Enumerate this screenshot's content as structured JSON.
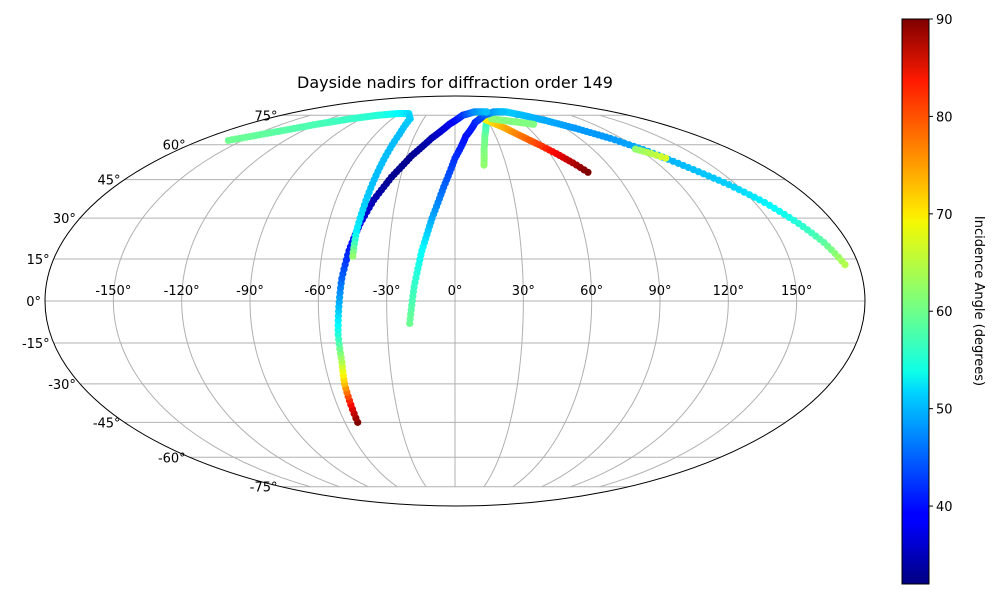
{
  "chart_data": {
    "type": "scatter",
    "projection": "mollweide",
    "title": "Dayside nadirs for diffraction order 149",
    "x_tick_labels": [
      "-150°",
      "-120°",
      "-90°",
      "-60°",
      "-30°",
      "0°",
      "30°",
      "60°",
      "90°",
      "120°",
      "150°"
    ],
    "y_tick_labels": [
      "-75°",
      "-60°",
      "-45°",
      "-30°",
      "-15°",
      "0°",
      "15°",
      "30°",
      "45°",
      "60°",
      "75°"
    ],
    "grid": true,
    "colorbar": {
      "label": "Incidence Angle (degrees)",
      "colormap": "jet",
      "range": [
        32,
        90
      ],
      "tick_labels": [
        "40",
        "50",
        "60",
        "70",
        "80",
        "90"
      ]
    },
    "series": [
      {
        "points": [
          {
            "lon": 17,
            "lat": 51,
            "inc": 62
          },
          {
            "lon": 19,
            "lat": 58,
            "inc": 61
          },
          {
            "lon": 22,
            "lat": 64,
            "inc": 60
          },
          {
            "lon": 26,
            "lat": 69,
            "inc": 58
          },
          {
            "lon": 31,
            "lat": 73,
            "inc": 56
          },
          {
            "lon": 38,
            "lat": 76,
            "inc": 54
          },
          {
            "lon": 47,
            "lat": 77,
            "inc": 52
          },
          {
            "lon": 58,
            "lat": 77,
            "inc": 51
          },
          {
            "lon": 70,
            "lat": 75,
            "inc": 50
          },
          {
            "lon": 84,
            "lat": 72,
            "inc": 49
          },
          {
            "lon": 98,
            "lat": 68,
            "inc": 48
          },
          {
            "lon": 112,
            "lat": 63,
            "inc": 48
          },
          {
            "lon": 124,
            "lat": 57,
            "inc": 49
          },
          {
            "lon": 135,
            "lat": 50,
            "inc": 50
          },
          {
            "lon": 146,
            "lat": 43,
            "inc": 51
          },
          {
            "lon": 155,
            "lat": 36,
            "inc": 53
          },
          {
            "lon": 163,
            "lat": 28,
            "inc": 56
          },
          {
            "lon": 169,
            "lat": 21,
            "inc": 59
          },
          {
            "lon": 174,
            "lat": 13,
            "inc": 64
          }
        ]
      },
      {
        "points": [
          {
            "lon": 25,
            "lat": 74,
            "inc": 66
          },
          {
            "lon": 33,
            "lat": 71,
            "inc": 70
          },
          {
            "lon": 41,
            "lat": 68,
            "inc": 73
          },
          {
            "lon": 49,
            "lat": 64,
            "inc": 76
          },
          {
            "lon": 57,
            "lat": 60,
            "inc": 79
          },
          {
            "lon": 64,
            "lat": 56,
            "inc": 83
          },
          {
            "lon": 70,
            "lat": 52,
            "inc": 87
          },
          {
            "lon": 75,
            "lat": 48,
            "inc": 90
          }
        ]
      },
      {
        "points": [
          {
            "lon": 35,
            "lat": 73,
            "inc": 62
          },
          {
            "lon": 46,
            "lat": 72,
            "inc": 61
          },
          {
            "lon": 58,
            "lat": 71,
            "inc": 61
          },
          {
            "lon": 68,
            "lat": 70,
            "inc": 61
          }
        ]
      },
      {
        "points": [
          {
            "lon": 118,
            "lat": 58,
            "inc": 62
          },
          {
            "lon": 124,
            "lat": 56,
            "inc": 64
          },
          {
            "lon": 129,
            "lat": 54,
            "inc": 66
          }
        ]
      },
      {
        "points": [
          {
            "lon": -20,
            "lat": -8,
            "inc": 60
          },
          {
            "lon": -18,
            "lat": 5,
            "inc": 57
          },
          {
            "lon": -15,
            "lat": 18,
            "inc": 54
          },
          {
            "lon": -11,
            "lat": 30,
            "inc": 49
          },
          {
            "lon": -6,
            "lat": 42,
            "inc": 45
          },
          {
            "lon": 0,
            "lat": 54,
            "inc": 42
          },
          {
            "lon": 8,
            "lat": 64,
            "inc": 40
          },
          {
            "lon": 18,
            "lat": 71,
            "inc": 41
          },
          {
            "lon": 30,
            "lat": 75,
            "inc": 44
          },
          {
            "lon": 44,
            "lat": 77,
            "inc": 48
          },
          {
            "lon": 55,
            "lat": 77,
            "inc": 50
          }
        ]
      },
      {
        "points": [
          {
            "lon": -53,
            "lat": -45,
            "inc": 90
          },
          {
            "lon": -53,
            "lat": -38,
            "inc": 83
          },
          {
            "lon": -53,
            "lat": -30,
            "inc": 72
          },
          {
            "lon": -52,
            "lat": -22,
            "inc": 64
          },
          {
            "lon": -52,
            "lat": -12,
            "inc": 56
          },
          {
            "lon": -51,
            "lat": -2,
            "inc": 50
          },
          {
            "lon": -50,
            "lat": 8,
            "inc": 45
          },
          {
            "lon": -48,
            "lat": 18,
            "inc": 41
          },
          {
            "lon": -45,
            "lat": 28,
            "inc": 38
          },
          {
            "lon": -41,
            "lat": 37,
            "inc": 35
          },
          {
            "lon": -35,
            "lat": 46,
            "inc": 33
          },
          {
            "lon": -27,
            "lat": 55,
            "inc": 33
          },
          {
            "lon": -17,
            "lat": 63,
            "inc": 35
          },
          {
            "lon": -5,
            "lat": 70,
            "inc": 38
          },
          {
            "lon": 8,
            "lat": 75,
            "inc": 42
          },
          {
            "lon": 22,
            "lat": 77,
            "inc": 47
          },
          {
            "lon": 36,
            "lat": 77,
            "inc": 50
          }
        ]
      },
      {
        "points": [
          {
            "lon": -160,
            "lat": 62,
            "inc": 60
          },
          {
            "lon": -140,
            "lat": 66,
            "inc": 59
          },
          {
            "lon": -120,
            "lat": 70,
            "inc": 58
          },
          {
            "lon": -100,
            "lat": 73,
            "inc": 57
          },
          {
            "lon": -80,
            "lat": 75,
            "inc": 56
          },
          {
            "lon": -62,
            "lat": 76,
            "inc": 54
          },
          {
            "lon": -50,
            "lat": 76,
            "inc": 52
          },
          {
            "lon": -43,
            "lat": 73,
            "inc": 51
          },
          {
            "lon": -42,
            "lat": 65,
            "inc": 50
          },
          {
            "lon": -43,
            "lat": 55,
            "inc": 50
          },
          {
            "lon": -44,
            "lat": 45,
            "inc": 50
          },
          {
            "lon": -45,
            "lat": 35,
            "inc": 51
          },
          {
            "lon": -46,
            "lat": 25,
            "inc": 53
          },
          {
            "lon": -46,
            "lat": 16,
            "inc": 62
          }
        ]
      }
    ]
  }
}
